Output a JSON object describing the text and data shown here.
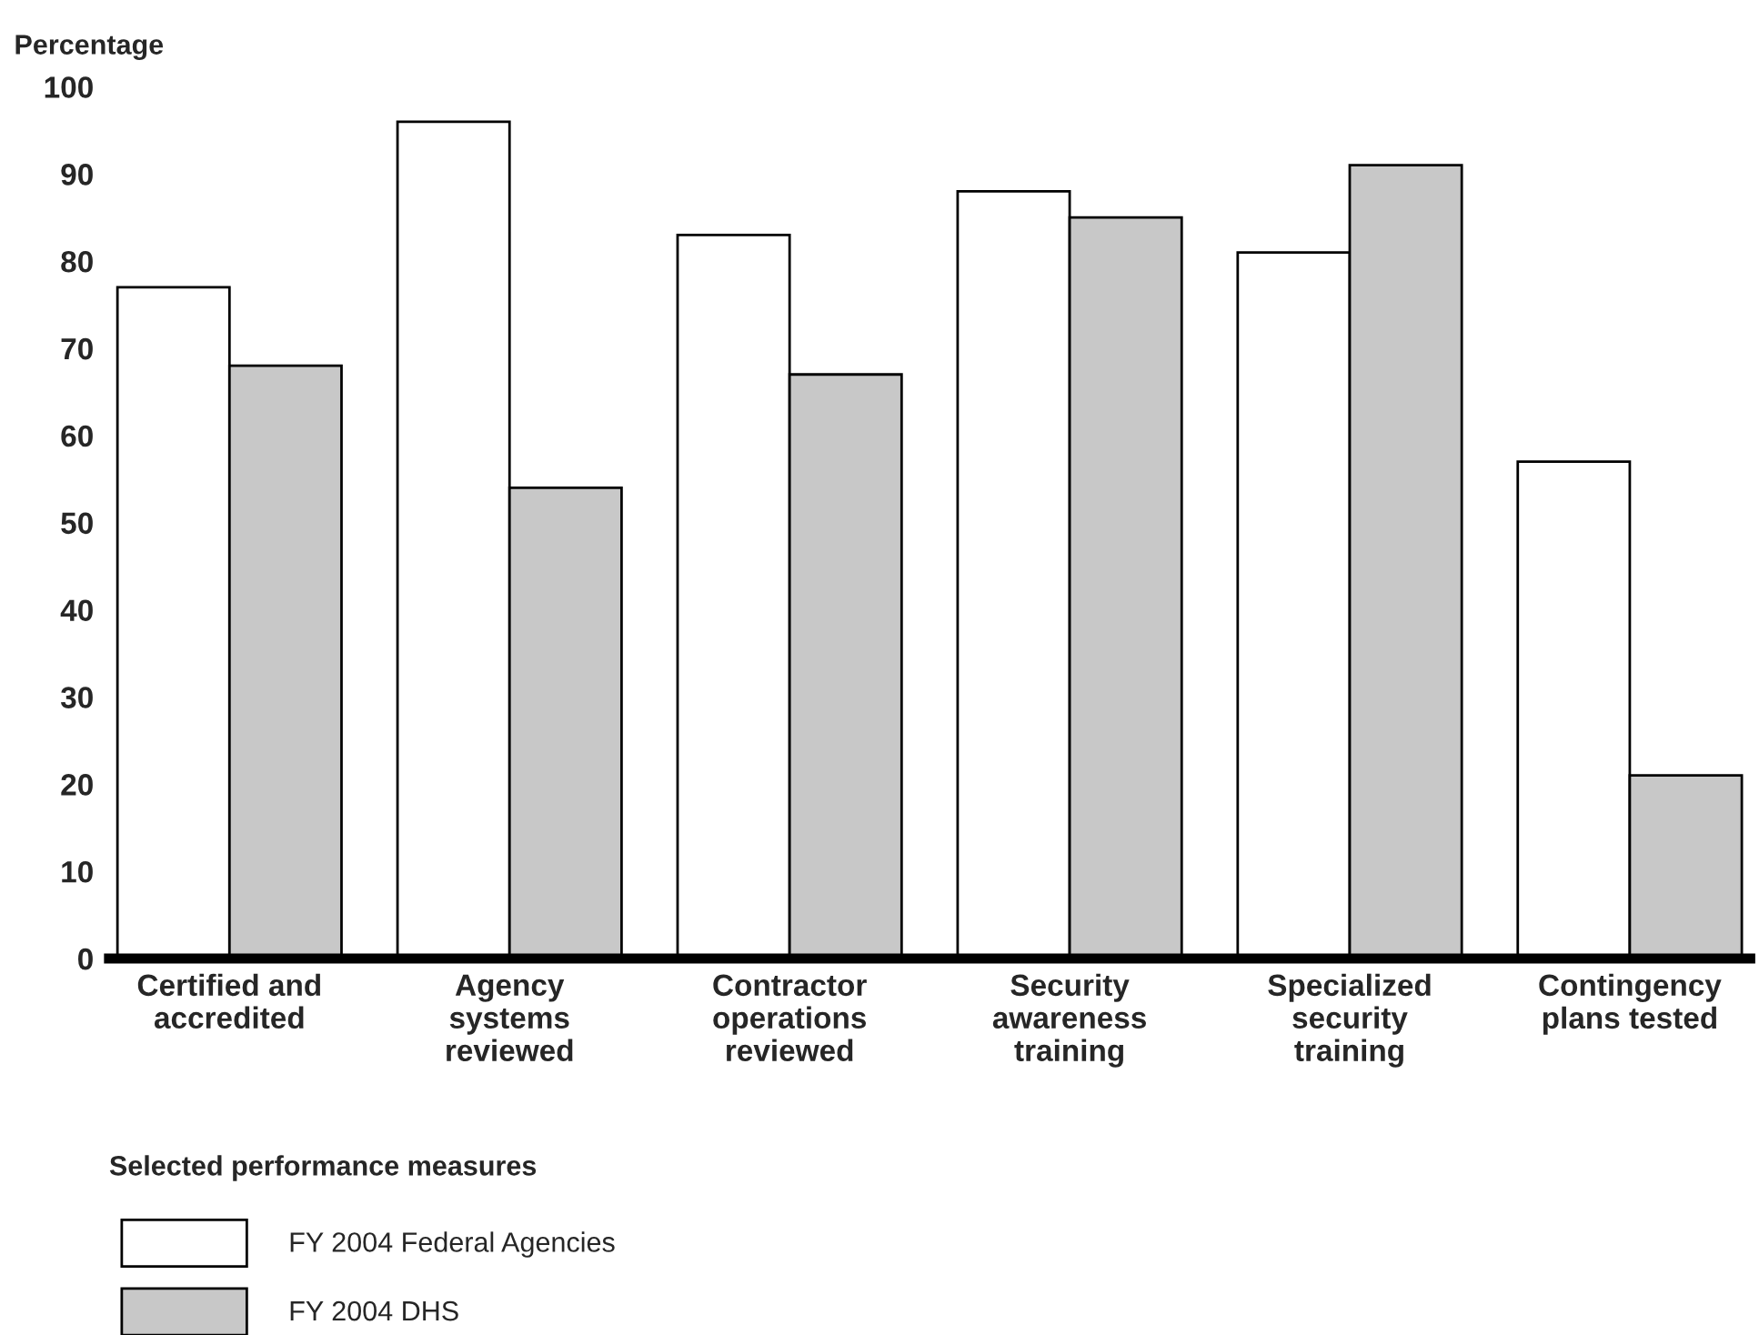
{
  "chart_data": {
    "type": "bar",
    "ylabel": "Percentage",
    "xlabel": "Selected performance measures",
    "categories": [
      "Certified and\naccredited",
      "Agency\nsystems\nreviewed",
      "Contractor\noperations\nreviewed",
      "Security\nawareness\ntraining",
      "Specialized\nsecurity\ntraining",
      "Contingency\nplans tested"
    ],
    "series": [
      {
        "name": "FY 2004 Federal Agencies",
        "color": "#ffffff",
        "values": [
          77,
          96,
          83,
          88,
          81,
          57
        ]
      },
      {
        "name": "FY 2004 DHS",
        "color": "#c8c8c8",
        "values": [
          68,
          54,
          67,
          85,
          91,
          21
        ]
      }
    ],
    "ylim": [
      0,
      100
    ],
    "yticks": [
      0,
      10,
      20,
      30,
      40,
      50,
      60,
      70,
      80,
      90,
      100
    ],
    "grid": false,
    "legend": "bottom"
  }
}
